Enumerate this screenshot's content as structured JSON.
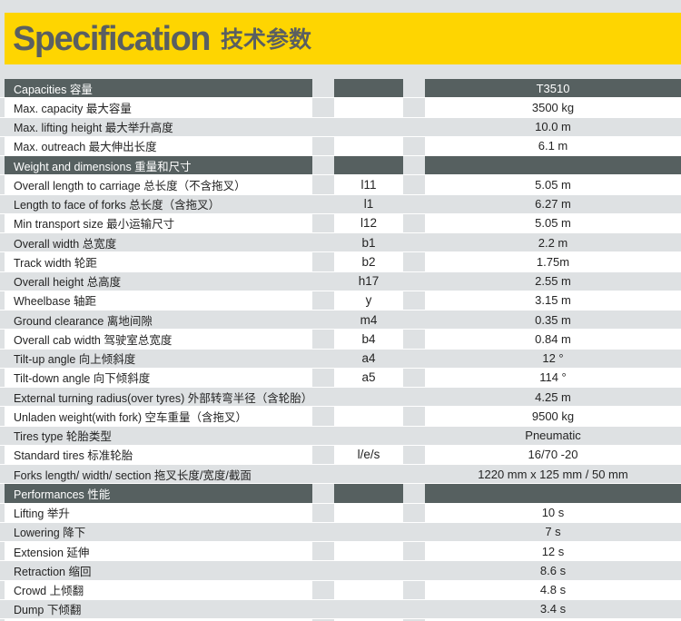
{
  "title": {
    "en": "Specification",
    "zh": "技术参数"
  },
  "colors": {
    "accent_yellow": "#FED501",
    "section_bar": "#566060",
    "page_background": "#DEE1E3",
    "row_white": "#FFFFFF",
    "title_text": "#5A5F61",
    "body_text": "#242424"
  },
  "table": {
    "model": "T3510",
    "sections": [
      {
        "header": "Capacities 容量",
        "rows": [
          {
            "label": "Max. capacity 最大容量",
            "symbol": "",
            "value": "3500 kg"
          },
          {
            "label": "Max. lifting height 最大举升高度",
            "symbol": "",
            "value": "10.0 m"
          },
          {
            "label": "Max. outreach 最大伸出长度",
            "symbol": "",
            "value": "6.1 m"
          }
        ]
      },
      {
        "header": "Weight and dimensions 重量和尺寸",
        "rows": [
          {
            "label": "Overall length to carriage 总长度（不含拖叉）",
            "symbol": "l11",
            "value": "5.05 m"
          },
          {
            "label": "Length to face of forks 总长度（含拖叉）",
            "symbol": "l1",
            "value": "6.27 m"
          },
          {
            "label": "Min transport size 最小运输尺寸",
            "symbol": "l12",
            "value": "5.05 m"
          },
          {
            "label": "Overall width 总宽度",
            "symbol": "b1",
            "value": "2.2 m"
          },
          {
            "label": "Track width 轮距",
            "symbol": "b2",
            "value": "1.75m"
          },
          {
            "label": "Overall height 总高度",
            "symbol": "h17",
            "value": "2.55 m"
          },
          {
            "label": "Wheelbase 轴距",
            "symbol": "y",
            "value": "3.15 m"
          },
          {
            "label": "Ground clearance 离地间隙",
            "symbol": "m4",
            "value": "0.35 m"
          },
          {
            "label": "Overall cab width 驾驶室总宽度",
            "symbol": "b4",
            "value": "0.84 m"
          },
          {
            "label": "Tilt-up angle 向上倾斜度",
            "symbol": "a4",
            "value": "12 °"
          },
          {
            "label": "Tilt-down angle 向下倾斜度",
            "symbol": "a5",
            "value": "114 °"
          },
          {
            "label": "External turning radius(over tyres) 外部转弯半径（含轮胎）",
            "symbol": "",
            "value": "4.25 m"
          },
          {
            "label": "Unladen weight(with fork) 空车重量（含拖叉）",
            "symbol": "",
            "value": "9500 kg"
          },
          {
            "label": "Tires type 轮胎类型",
            "symbol": "",
            "value": "Pneumatic"
          },
          {
            "label": "Standard tires 标准轮胎",
            "symbol": "l/e/s",
            "value": "16/70 -20"
          },
          {
            "label": "Forks length/ width/ section 拖叉长度/宽度/截面",
            "symbol": "",
            "value": "1220 mm x 125 mm / 50 mm"
          }
        ]
      },
      {
        "header": "Performances 性能",
        "rows": [
          {
            "label": "Lifting 举升",
            "symbol": "",
            "value": "10 s"
          },
          {
            "label": "Lowering 降下",
            "symbol": "",
            "value": "7 s"
          },
          {
            "label": "Extension 延伸",
            "symbol": "",
            "value": "12 s"
          },
          {
            "label": "Retraction 缩回",
            "symbol": "",
            "value": "8.6 s"
          },
          {
            "label": "Crowd 上倾翻",
            "symbol": "",
            "value": "4.8 s"
          },
          {
            "label": "Dump 下倾翻",
            "symbol": "",
            "value": "3.4 s"
          }
        ]
      }
    ]
  }
}
